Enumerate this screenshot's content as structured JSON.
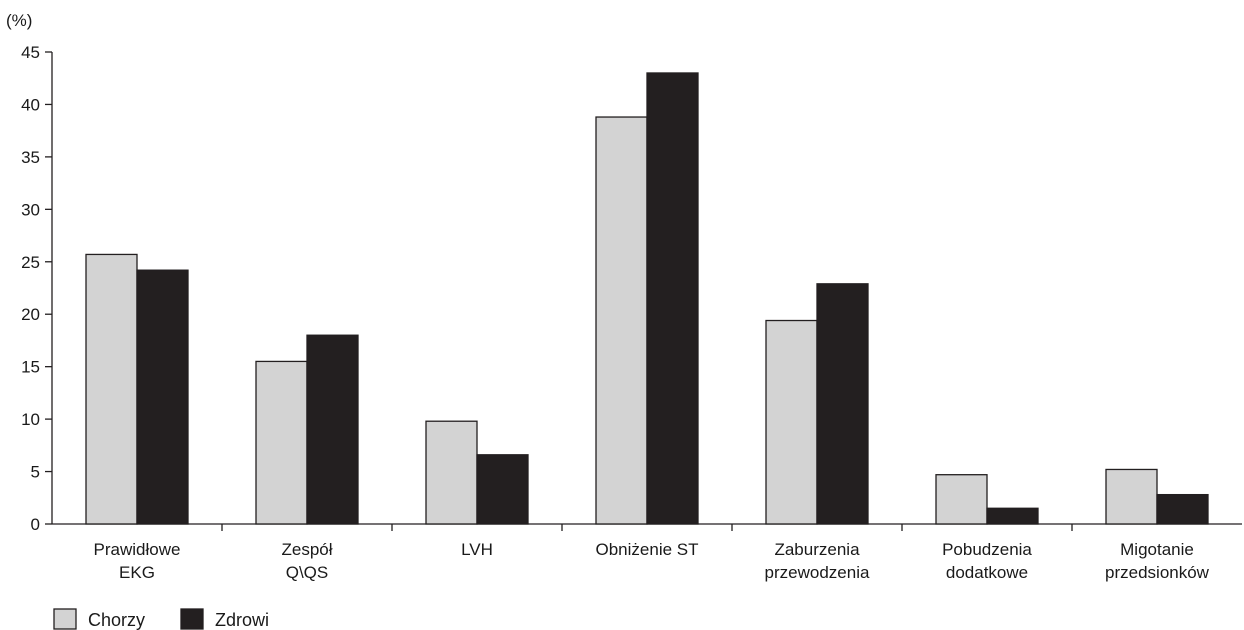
{
  "chart_data": {
    "type": "bar",
    "ylabel": "(%)",
    "ylim": [
      0,
      45
    ],
    "yticks": [
      "0",
      "5",
      "10",
      "15",
      "20",
      "25",
      "30",
      "35",
      "40",
      "45"
    ],
    "categories": [
      [
        "Prawidłowe",
        "EKG"
      ],
      [
        "Zespół",
        "Q\\QS"
      ],
      [
        "LVH"
      ],
      [
        "Obniżenie ST"
      ],
      [
        "Zaburzenia",
        "przewodzenia"
      ],
      [
        "Pobudzenia",
        "dodatkowe"
      ],
      [
        "Migotanie",
        "przedsionków"
      ]
    ],
    "series": [
      {
        "name": "Chorzy",
        "color": "#d3d3d3",
        "values": [
          25.7,
          15.5,
          9.8,
          38.8,
          19.4,
          4.7,
          5.2
        ]
      },
      {
        "name": "Zdrowi",
        "color": "#231f20",
        "values": [
          24.2,
          18.0,
          6.6,
          43.0,
          22.9,
          1.5,
          2.8
        ]
      }
    ],
    "legend_position": "bottom-left",
    "grid": false
  }
}
